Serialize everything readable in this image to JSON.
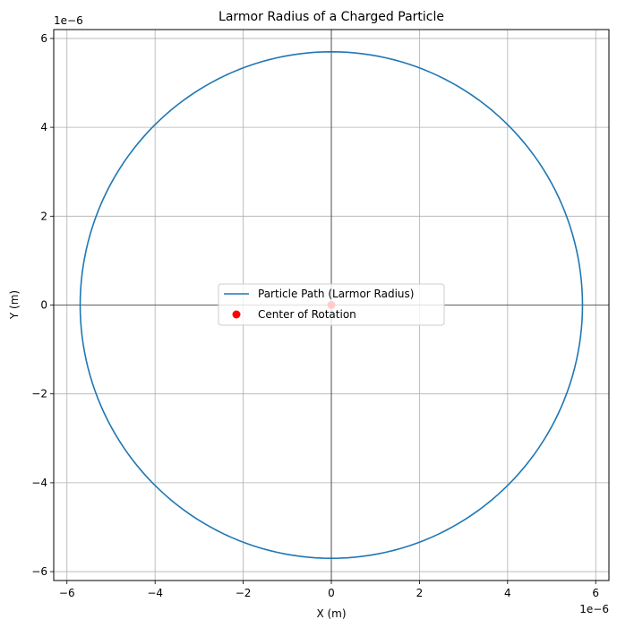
{
  "chart_data": {
    "type": "line",
    "title": "Larmor Radius of a Charged Particle",
    "xlabel": "X (m)",
    "ylabel": "Y (m)",
    "x_offset_text": "1e−6",
    "y_offset_text": "1e−6",
    "xlim": [
      -6.3e-06,
      6.3e-06
    ],
    "ylim": [
      -6.2e-06,
      6.2e-06
    ],
    "xticks": [
      -6,
      -4,
      -2,
      0,
      2,
      4,
      6
    ],
    "yticks": [
      -6,
      -4,
      -2,
      0,
      2,
      4,
      6
    ],
    "xtick_labels": [
      "−6",
      "−4",
      "−2",
      "0",
      "2",
      "4",
      "6"
    ],
    "ytick_labels": [
      "−6",
      "−4",
      "−2",
      "0",
      "2",
      "4",
      "6"
    ],
    "tick_scale": 1e-06,
    "grid": true,
    "zero_lines": true,
    "legend_position": "center",
    "series": [
      {
        "name": "Particle Path (Larmor Radius)",
        "kind": "circle",
        "center": [
          0,
          0
        ],
        "radius": 5.7e-06,
        "color": "#1f77b4"
      },
      {
        "name": "Center of Rotation",
        "kind": "scatter",
        "points": [
          [
            0,
            0
          ]
        ],
        "color": "#ff0000"
      }
    ]
  }
}
